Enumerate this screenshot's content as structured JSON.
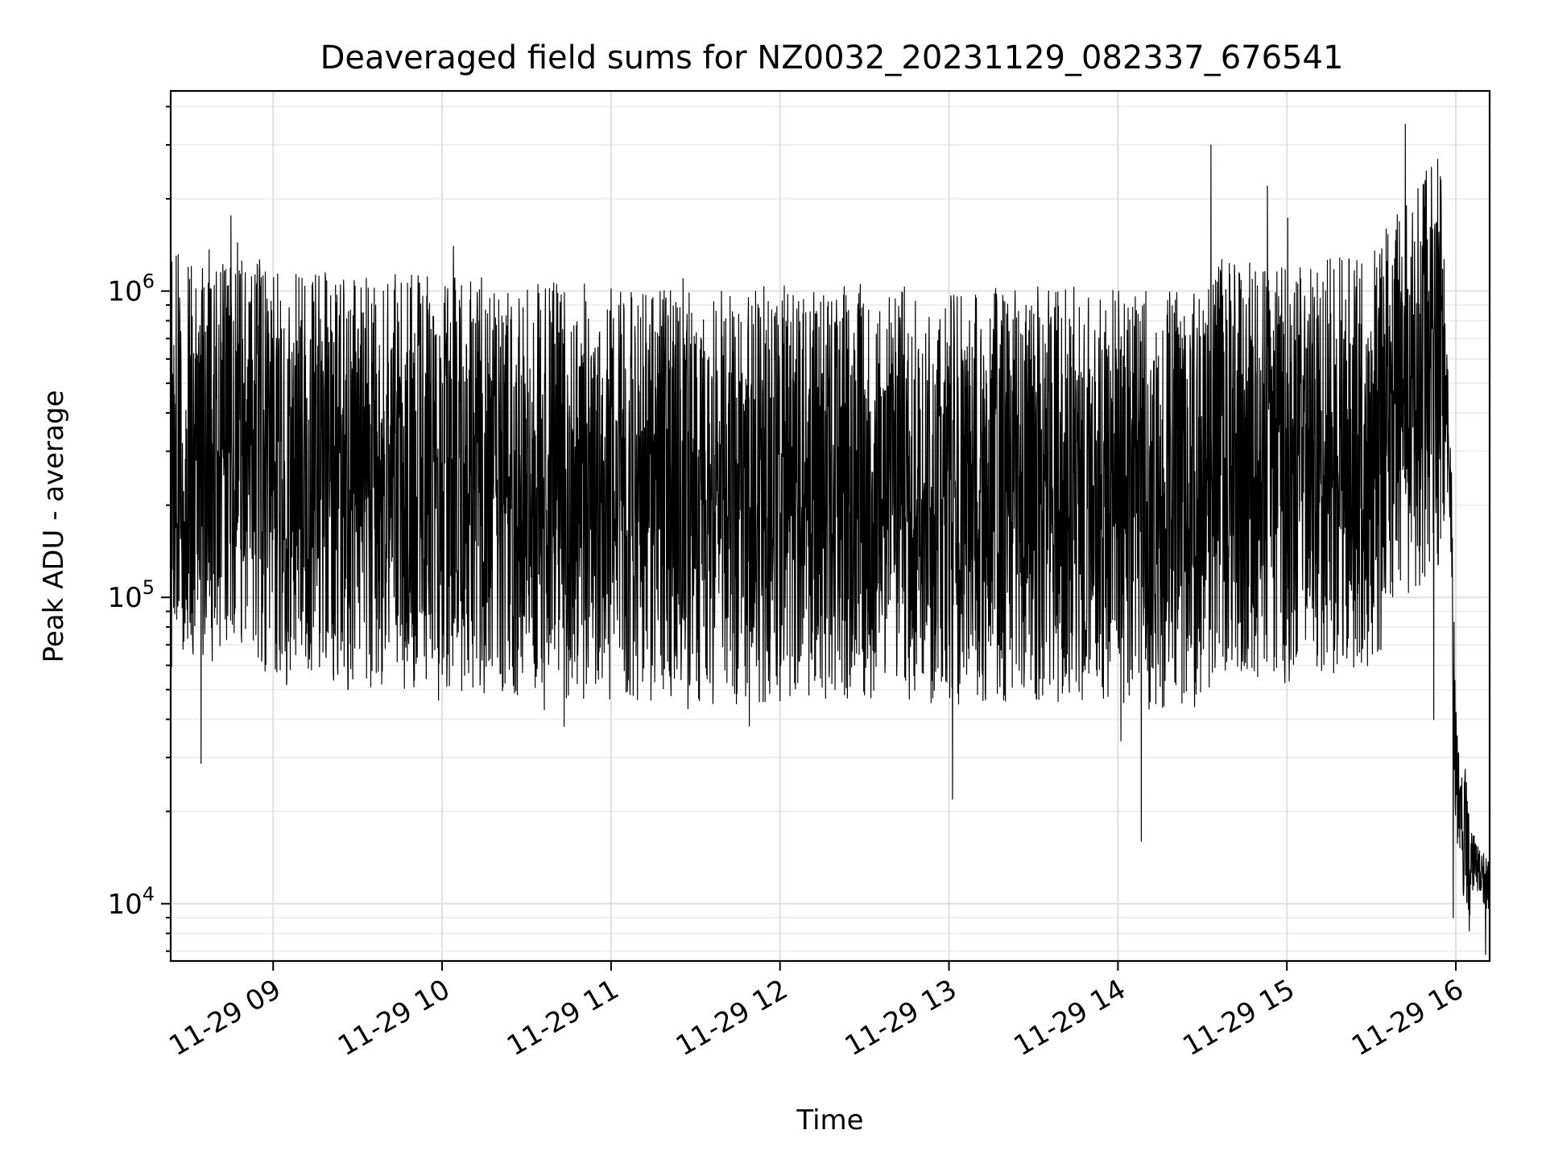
{
  "chart_data": {
    "type": "line",
    "title": "Deaveraged field sums for NZ0032_20231129_082337_676541",
    "xlabel": "Time",
    "ylabel": "Peak ADU - average",
    "x_axis": {
      "type": "datetime",
      "range": [
        "2023-11-29 08:23:37",
        "2023-11-29 16:12:00"
      ],
      "ticks": [
        {
          "value": "2023-11-29 09:00",
          "label": "11-29 09"
        },
        {
          "value": "2023-11-29 10:00",
          "label": "11-29 10"
        },
        {
          "value": "2023-11-29 11:00",
          "label": "11-29 11"
        },
        {
          "value": "2023-11-29 12:00",
          "label": "11-29 12"
        },
        {
          "value": "2023-11-29 13:00",
          "label": "11-29 13"
        },
        {
          "value": "2023-11-29 14:00",
          "label": "11-29 14"
        },
        {
          "value": "2023-11-29 15:00",
          "label": "11-29 15"
        },
        {
          "value": "2023-11-29 16:00",
          "label": "11-29 16"
        }
      ]
    },
    "y_axis": {
      "scale": "log",
      "range": [
        6500,
        4500000
      ],
      "ticks": [
        {
          "value": 10000,
          "base": "10",
          "exp": "4"
        },
        {
          "value": 100000,
          "base": "10",
          "exp": "5"
        },
        {
          "value": 1000000,
          "base": "10",
          "exp": "6"
        }
      ]
    },
    "grid": true,
    "line_color": "#000000",
    "series": [
      {
        "x": [
          "2023-11-29 08:23",
          "2023-11-29 08:30",
          "2023-11-29 08:40",
          "2023-11-29 08:45",
          "2023-11-29 09:00",
          "2023-11-29 09:30",
          "2023-11-29 10:00",
          "2023-11-29 10:30",
          "2023-11-29 11:00",
          "2023-11-29 11:30",
          "2023-11-29 12:00",
          "2023-11-29 12:30",
          "2023-11-29 13:00",
          "2023-11-29 13:30",
          "2023-11-29 14:00",
          "2023-11-29 14:30",
          "2023-11-29 14:35",
          "2023-11-29 15:00",
          "2023-11-29 15:30",
          "2023-11-29 15:50",
          "2023-11-29 15:55",
          "2023-11-29 15:58",
          "2023-11-29 16:00",
          "2023-11-29 16:05",
          "2023-11-29 16:12"
        ],
        "y": [
          450000,
          480000,
          450000,
          600000,
          400000,
          380000,
          380000,
          360000,
          350000,
          330000,
          350000,
          360000,
          340000,
          350000,
          340000,
          330000,
          450000,
          400000,
          450000,
          900000,
          1000000,
          300000,
          30000,
          15000,
          12000
        ]
      }
    ],
    "annotations": [
      {
        "x": "2023-11-29 10:04",
        "y": 1400000
      },
      {
        "x": "2023-11-29 14:33",
        "y": 3000000
      },
      {
        "x": "2023-11-29 14:53",
        "y": 2200000
      },
      {
        "x": "2023-11-29 15:42",
        "y": 3500000
      },
      {
        "x": "2023-11-29 11:49",
        "y": 38000
      },
      {
        "x": "2023-11-29 14:01",
        "y": 34000
      },
      {
        "x": "2023-11-29 15:59",
        "y": 9000
      }
    ]
  }
}
